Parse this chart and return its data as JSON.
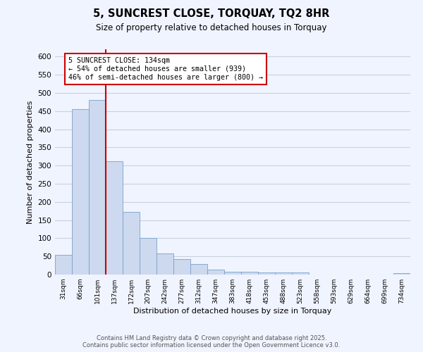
{
  "title": "5, SUNCREST CLOSE, TORQUAY, TQ2 8HR",
  "subtitle": "Size of property relative to detached houses in Torquay",
  "xlabel": "Distribution of detached houses by size in Torquay",
  "ylabel": "Number of detached properties",
  "bar_labels": [
    "31sqm",
    "66sqm",
    "101sqm",
    "137sqm",
    "172sqm",
    "207sqm",
    "242sqm",
    "277sqm",
    "312sqm",
    "347sqm",
    "383sqm",
    "418sqm",
    "453sqm",
    "488sqm",
    "523sqm",
    "558sqm",
    "593sqm",
    "629sqm",
    "664sqm",
    "699sqm",
    "734sqm"
  ],
  "bar_heights": [
    55,
    455,
    480,
    312,
    172,
    100,
    58,
    42,
    30,
    14,
    7,
    7,
    5,
    5,
    5,
    0,
    0,
    0,
    0,
    0,
    3
  ],
  "bar_color": "#ccd9ee",
  "bar_edge_color": "#7aa0cc",
  "vline_color": "#cc0000",
  "annotation_title": "5 SUNCREST CLOSE: 134sqm",
  "annotation_line1": "← 54% of detached houses are smaller (939)",
  "annotation_line2": "46% of semi-detached houses are larger (800) →",
  "annotation_box_color": "#ffffff",
  "annotation_box_edge": "#cc0000",
  "ylim": [
    0,
    620
  ],
  "yticks": [
    0,
    50,
    100,
    150,
    200,
    250,
    300,
    350,
    400,
    450,
    500,
    550,
    600
  ],
  "footer1": "Contains HM Land Registry data © Crown copyright and database right 2025.",
  "footer2": "Contains public sector information licensed under the Open Government Licence v3.0.",
  "bg_color": "#f0f4ff",
  "grid_color": "#c8d0e0"
}
